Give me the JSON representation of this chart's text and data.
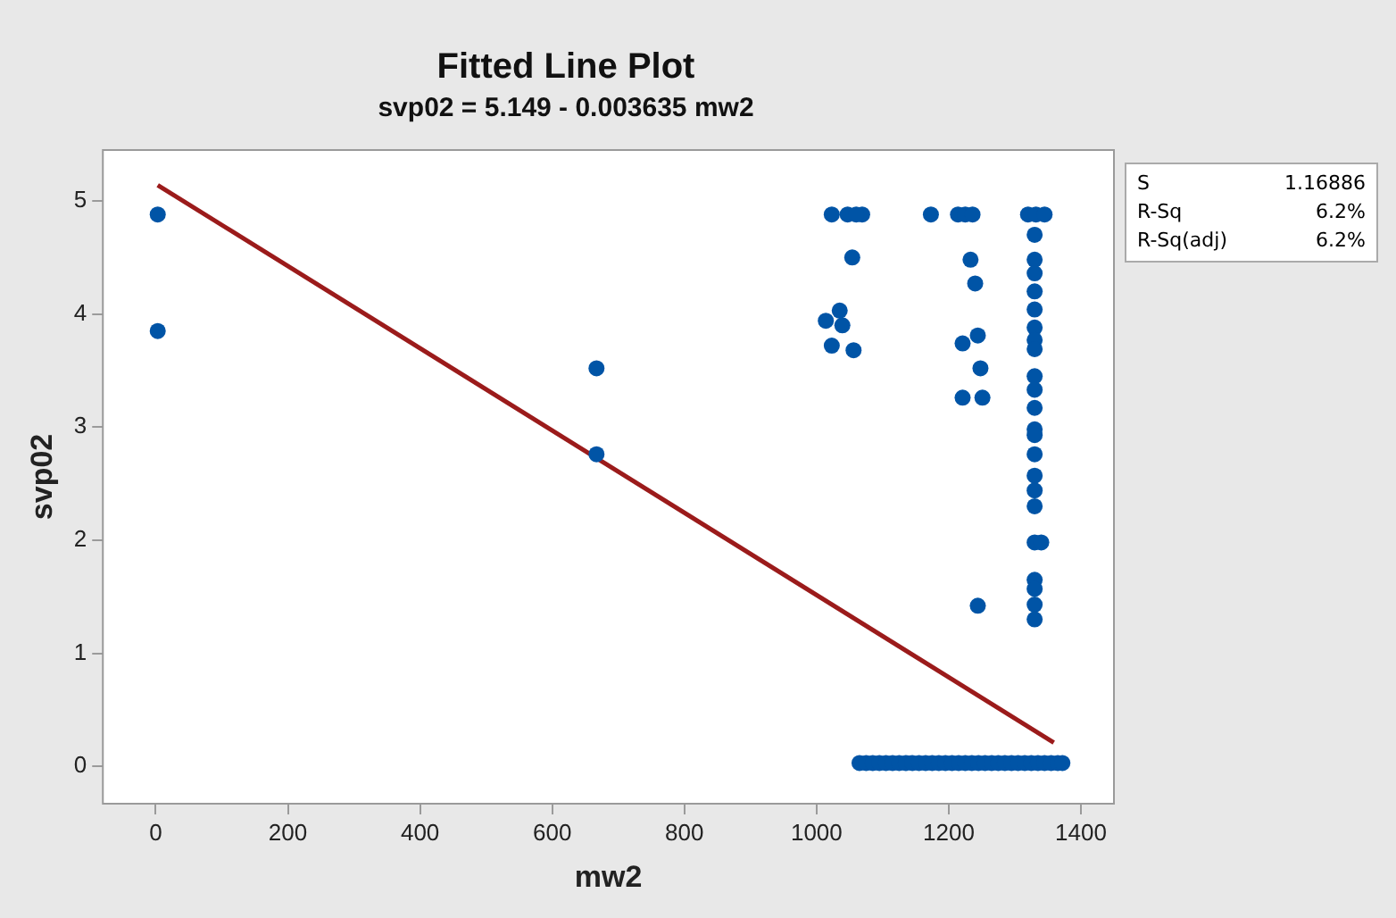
{
  "chart_data": {
    "type": "scatter",
    "title": "Fitted Line Plot",
    "subtitle": "svp02 = 5.149 - 0.003635 mw2",
    "xlabel": "mw2",
    "ylabel": "svp02",
    "xlim": [
      -80,
      1450
    ],
    "xticks": [
      0,
      200,
      400,
      600,
      800,
      1000,
      1200,
      1400
    ],
    "ylim": [
      -0.33,
      5.45
    ],
    "yticks": [
      0,
      1,
      2,
      3,
      4,
      5
    ],
    "grid": false,
    "legend": false,
    "annotations": [
      "S 1.16886",
      "R-Sq 6.2%",
      "R-Sq(adj) 6.2%"
    ],
    "series": [
      {
        "marker": "circle",
        "color": "#0054a6",
        "x": [
          3,
          3,
          667,
          667,
          1023,
          1047,
          1069,
          1060,
          1173,
          1214,
          1225,
          1236,
          1320,
          1332,
          1345,
          1054,
          1035,
          1014,
          1039,
          1023,
          1056,
          1233,
          1240,
          1244,
          1221,
          1248,
          1221,
          1251,
          1244,
          1330,
          1330,
          1330,
          1330,
          1330,
          1330,
          1330,
          1330,
          1330,
          1330,
          1330,
          1330,
          1330,
          1330,
          1330,
          1330,
          1330,
          1330,
          1340,
          1330,
          1330,
          1330,
          1330,
          1065,
          1075,
          1085,
          1095,
          1105,
          1115,
          1125,
          1135,
          1145,
          1155,
          1165,
          1175,
          1185,
          1195,
          1205,
          1215,
          1225,
          1235,
          1245,
          1255,
          1265,
          1275,
          1285,
          1295,
          1305,
          1315,
          1325,
          1335,
          1345,
          1355,
          1365,
          1372
        ],
        "values": [
          4.88,
          3.85,
          3.52,
          2.76,
          4.88,
          4.88,
          4.88,
          4.88,
          4.88,
          4.88,
          4.88,
          4.88,
          4.88,
          4.88,
          4.88,
          4.5,
          4.03,
          3.94,
          3.9,
          3.72,
          3.68,
          4.48,
          4.27,
          3.81,
          3.74,
          3.52,
          3.26,
          3.26,
          1.42,
          4.7,
          4.48,
          4.36,
          4.2,
          4.04,
          3.88,
          3.77,
          3.69,
          3.45,
          3.33,
          3.17,
          2.98,
          2.93,
          2.76,
          2.57,
          2.44,
          2.3,
          1.98,
          1.98,
          1.65,
          1.57,
          1.43,
          1.3,
          0.03,
          0.03,
          0.03,
          0.03,
          0.03,
          0.03,
          0.03,
          0.03,
          0.03,
          0.03,
          0.03,
          0.03,
          0.03,
          0.03,
          0.03,
          0.03,
          0.03,
          0.03,
          0.03,
          0.03,
          0.03,
          0.03,
          0.03,
          0.03,
          0.03,
          0.03,
          0.03,
          0.03,
          0.03,
          0.03,
          0.03,
          0.03
        ]
      },
      {
        "type": "line",
        "color": "#9b1b1b",
        "x": [
          3,
          1359
        ],
        "values": [
          5.14,
          0.21
        ]
      }
    ]
  }
}
